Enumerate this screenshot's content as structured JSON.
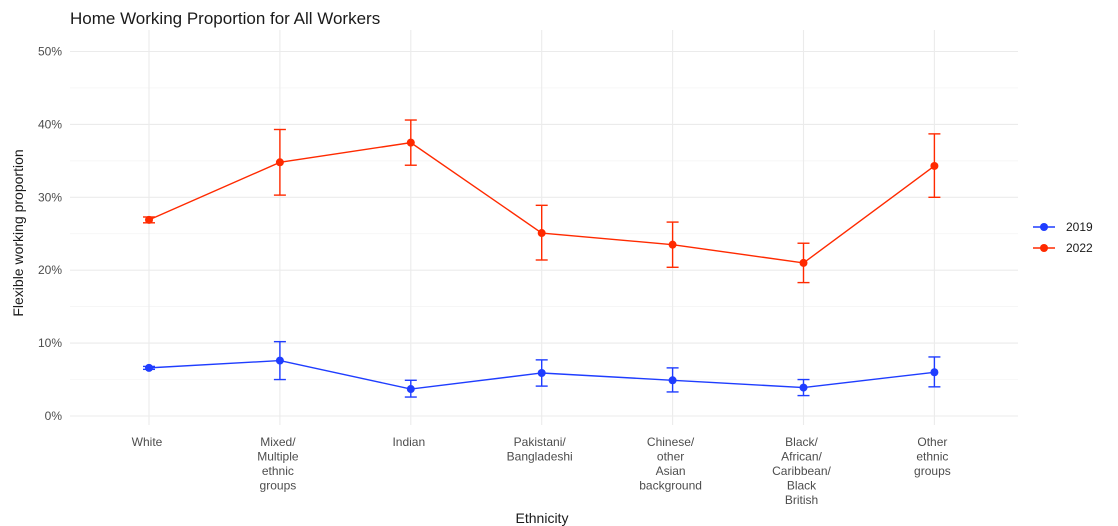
{
  "chart_data": {
    "type": "line",
    "title": "Home Working Proportion for All Workers",
    "xlabel": "Ethnicity",
    "ylabel": "Flexible working proportion",
    "categories": [
      [
        "White"
      ],
      [
        "Mixed/",
        "Multiple",
        "ethnic",
        "groups"
      ],
      [
        "Indian"
      ],
      [
        "Pakistani/",
        "Bangladeshi"
      ],
      [
        "Chinese/",
        "other",
        "Asian",
        "background"
      ],
      [
        "Black/",
        "African/",
        "Caribbean/",
        "Black",
        "British"
      ],
      [
        "Other",
        "ethnic",
        "groups"
      ]
    ],
    "ylim": [
      0,
      50
    ],
    "yticks": [
      0,
      10,
      20,
      30,
      40,
      50
    ],
    "ytick_labels": [
      "0%",
      "10%",
      "20%",
      "30%",
      "40%",
      "50%"
    ],
    "grid": true,
    "legend_position": "right",
    "series": [
      {
        "name": "2019",
        "color": "#1f3dff",
        "values": [
          6.6,
          7.6,
          3.7,
          5.9,
          4.9,
          3.9,
          6.0
        ],
        "error_low": [
          6.4,
          5.0,
          2.6,
          4.1,
          3.3,
          2.8,
          4.0
        ],
        "error_high": [
          6.8,
          10.2,
          4.9,
          7.7,
          6.6,
          5.0,
          8.1
        ]
      },
      {
        "name": "2022",
        "color": "#ff2a00",
        "values": [
          26.9,
          34.8,
          37.5,
          25.1,
          23.5,
          21.0,
          34.3
        ],
        "error_low": [
          26.5,
          30.3,
          34.4,
          21.4,
          20.4,
          18.3,
          30.0
        ],
        "error_high": [
          27.3,
          39.3,
          40.6,
          28.9,
          26.6,
          23.7,
          38.7
        ]
      }
    ]
  }
}
